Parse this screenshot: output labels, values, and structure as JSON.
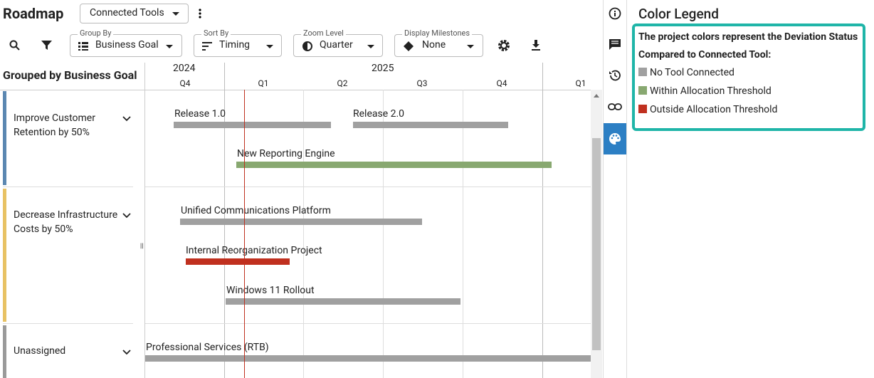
{
  "header": {
    "title": "Roadmap",
    "view": "Connected Tools"
  },
  "toolbar": [
    {
      "label": "Group By",
      "value": "Business Goal"
    },
    {
      "label": "Sort By",
      "value": "Timing"
    },
    {
      "label": "Zoom Level",
      "value": "Quarter"
    },
    {
      "label": "Display Milestones",
      "value": "None"
    }
  ],
  "grid": {
    "heading": "Grouped by Business Goal",
    "years": [
      "2024",
      "2025"
    ],
    "quarters": [
      "Q4",
      "Q1",
      "Q2",
      "Q3",
      "Q4",
      "Q1"
    ]
  },
  "groups": [
    {
      "label": "Improve Customer Retention by 50%",
      "projects": [
        "Release 1.0",
        "Release 2.0",
        "New Reporting Engine"
      ]
    },
    {
      "label": "Decrease Infrastructure Costs by 50%",
      "projects": [
        "Unified Communications Platform",
        "Internal Reorganization Project",
        "Windows 11 Rollout"
      ]
    },
    {
      "label": "Unassigned",
      "projects": [
        "Professional Services (RTB)"
      ]
    }
  ],
  "legend": {
    "title": "Color Legend",
    "description": "The project colors represent the Deviation Status",
    "subtitle": "Compared to Connected Tool:",
    "items": [
      "No Tool Connected",
      "Within Allocation Threshold",
      "Outside Allocation Threshold"
    ]
  }
}
